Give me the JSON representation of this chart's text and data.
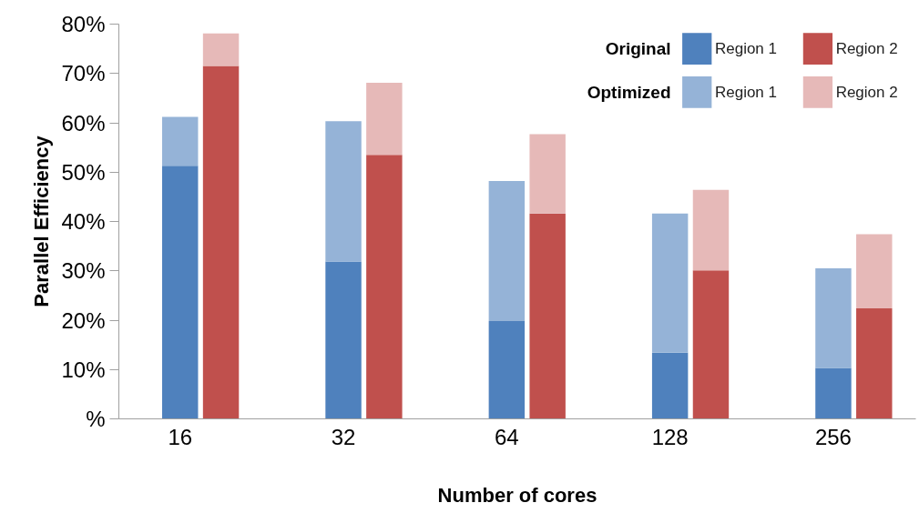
{
  "chart_data": {
    "type": "bar",
    "stacked": true,
    "xlabel": "Number of cores",
    "ylabel": "Parallel Efficiency",
    "categories": [
      "16",
      null,
      "32",
      null,
      "64",
      null,
      "128",
      null,
      "256",
      null
    ],
    "series": [
      {
        "name": "Region 1",
        "color": "#4f81bd",
        "values": [
          51.3,
          null,
          31.9,
          null,
          19.8,
          null,
          13.4,
          null,
          10.3,
          null
        ]
      },
      {
        "name": "Region 1",
        "color": "#95b3d7",
        "values": [
          9.9,
          null,
          28.4,
          null,
          28.4,
          null,
          28.2,
          null,
          20.2,
          null
        ]
      },
      {
        "name": "Region 2",
        "color": "#c0504d",
        "values": [
          null,
          71.5,
          null,
          53.5,
          null,
          41.6,
          null,
          30.1,
          null,
          22.4
        ]
      },
      {
        "name": "Region 2",
        "color": "#e6b9b8",
        "values": [
          null,
          6.6,
          null,
          14.6,
          null,
          16.1,
          null,
          16.3,
          null,
          15.0
        ]
      }
    ],
    "annotations": [
      "Original",
      "Optimized"
    ],
    "ylim": [
      0,
      80
    ],
    "yticks": [
      {
        "value": 0,
        "label": "%"
      },
      {
        "value": 10,
        "label": "10%"
      },
      {
        "value": 20,
        "label": "20%"
      },
      {
        "value": 30,
        "label": "30%"
      },
      {
        "value": 40,
        "label": "40%"
      },
      {
        "value": 50,
        "label": "50%"
      },
      {
        "value": 60,
        "label": "60%"
      },
      {
        "value": 70,
        "label": "70%"
      },
      {
        "value": 80,
        "label": "80%"
      }
    ],
    "grid": false,
    "legend": "top right"
  }
}
